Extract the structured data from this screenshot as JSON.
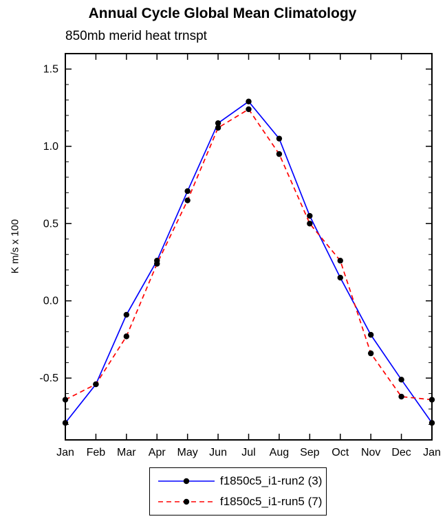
{
  "chart_data": {
    "type": "line",
    "title": "Annual Cycle Global Mean Climatology",
    "subtitle": "850mb merid heat trnspt",
    "xlabel": "",
    "ylabel": "K m/s x 100",
    "categories": [
      "Jan",
      "Feb",
      "Mar",
      "Apr",
      "May",
      "Jun",
      "Jul",
      "Aug",
      "Sep",
      "Oct",
      "Nov",
      "Dec",
      "Jan"
    ],
    "series": [
      {
        "name": "f1850c5_i1-run2 (3)",
        "color": "#0000ff",
        "dash": "solid",
        "values": [
          -0.79,
          -0.54,
          -0.09,
          0.26,
          0.71,
          1.15,
          1.29,
          1.05,
          0.55,
          0.15,
          -0.22,
          -0.51,
          -0.79
        ]
      },
      {
        "name": "f1850c5_i1-run5 (7)",
        "color": "#ff0000",
        "dash": "dashed",
        "values": [
          -0.64,
          -0.54,
          -0.23,
          0.24,
          0.65,
          1.12,
          1.24,
          0.95,
          0.5,
          0.26,
          -0.34,
          -0.62,
          -0.64
        ]
      }
    ],
    "marker_color": "#000000",
    "yticks": [
      -0.5,
      0.0,
      0.5,
      1.0,
      1.5
    ],
    "ylim": [
      -0.9,
      1.6
    ],
    "grid": false,
    "legend_position": "bottom"
  }
}
